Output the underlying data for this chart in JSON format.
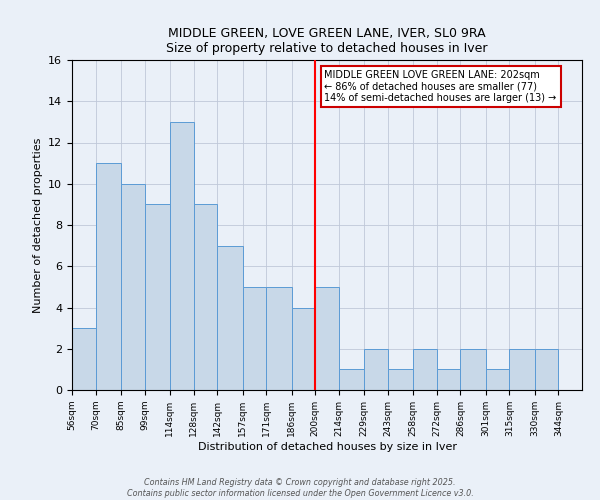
{
  "title": "MIDDLE GREEN, LOVE GREEN LANE, IVER, SL0 9RA",
  "subtitle": "Size of property relative to detached houses in Iver",
  "xlabel": "Distribution of detached houses by size in Iver",
  "ylabel": "Number of detached properties",
  "bin_edges": [
    56,
    70,
    85,
    99,
    114,
    128,
    142,
    157,
    171,
    186,
    200,
    214,
    229,
    243,
    258,
    272,
    286,
    301,
    315,
    330,
    344
  ],
  "counts": [
    3,
    11,
    10,
    9,
    13,
    9,
    7,
    5,
    5,
    4,
    5,
    1,
    2,
    1,
    2,
    1,
    2,
    1,
    2,
    2
  ],
  "bar_color": "#c8d8e8",
  "bar_edge_color": "#5b9bd5",
  "red_line_x": 200,
  "ylim": [
    0,
    16
  ],
  "yticks": [
    0,
    2,
    4,
    6,
    8,
    10,
    12,
    14,
    16
  ],
  "bg_color": "#eaf0f8",
  "grid_color": "#c0c8d8",
  "annotation_title": "MIDDLE GREEN LOVE GREEN LANE: 202sqm",
  "annotation_line1": "← 86% of detached houses are smaller (77)",
  "annotation_line2": "14% of semi-detached houses are larger (13) →",
  "annotation_box_color": "#ffffff",
  "annotation_box_edge": "#cc0000",
  "footnote1": "Contains HM Land Registry data © Crown copyright and database right 2025.",
  "footnote2": "Contains public sector information licensed under the Open Government Licence v3.0."
}
